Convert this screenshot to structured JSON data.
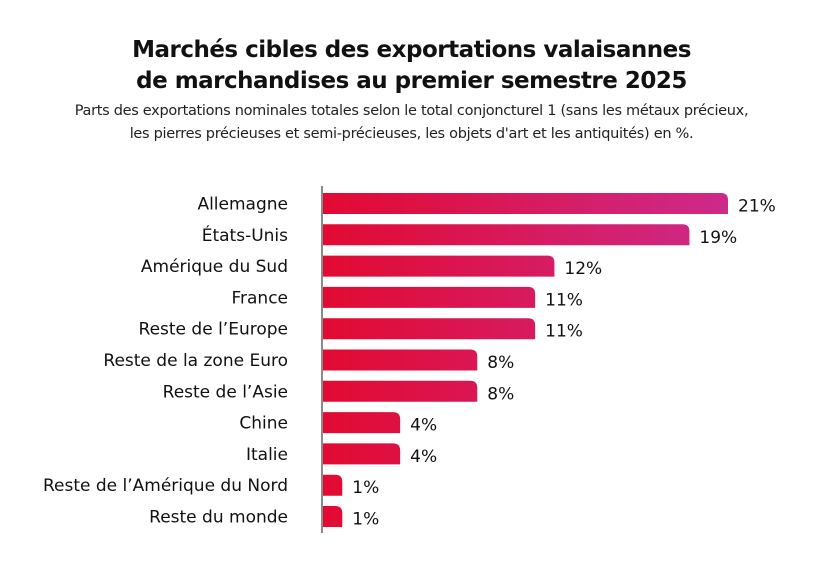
{
  "chart_data": {
    "type": "bar",
    "orientation": "horizontal",
    "title": "Marchés cibles des exportations valaisannes de marchandises au premier semestre 2025",
    "title_lines": [
      "Marchés cibles des exportations valaisannes",
      "de marchandises au premier semestre 2025"
    ],
    "subtitle_lines": [
      "Parts des exportations nominales totales selon le total conjoncturel 1  (sans les métaux précieux,",
      "les pierres précieuses et semi-précieuses, les objets d'art et les antiquités) en %."
    ],
    "categories": [
      "Allemagne",
      "États-Unis",
      "Amérique du Sud",
      "France",
      "Reste de l’Europe",
      "Reste de la zone Euro",
      "Reste de l’Asie",
      "Chine",
      "Italie",
      "Reste de l’Amérique du Nord",
      "Reste du monde"
    ],
    "values": [
      21,
      19,
      12,
      11,
      11,
      8,
      8,
      4,
      4,
      1,
      1
    ],
    "value_labels": [
      "21%",
      "19%",
      "12%",
      "11%",
      "11%",
      "8%",
      "8%",
      "4%",
      "4%",
      "1%",
      "1%"
    ],
    "unit": "%",
    "xlim": [
      0,
      21
    ],
    "grid": false,
    "colors": {
      "start": "#e20a32",
      "end": "#cd2a8a",
      "axis": "#8a8a8a"
    }
  }
}
